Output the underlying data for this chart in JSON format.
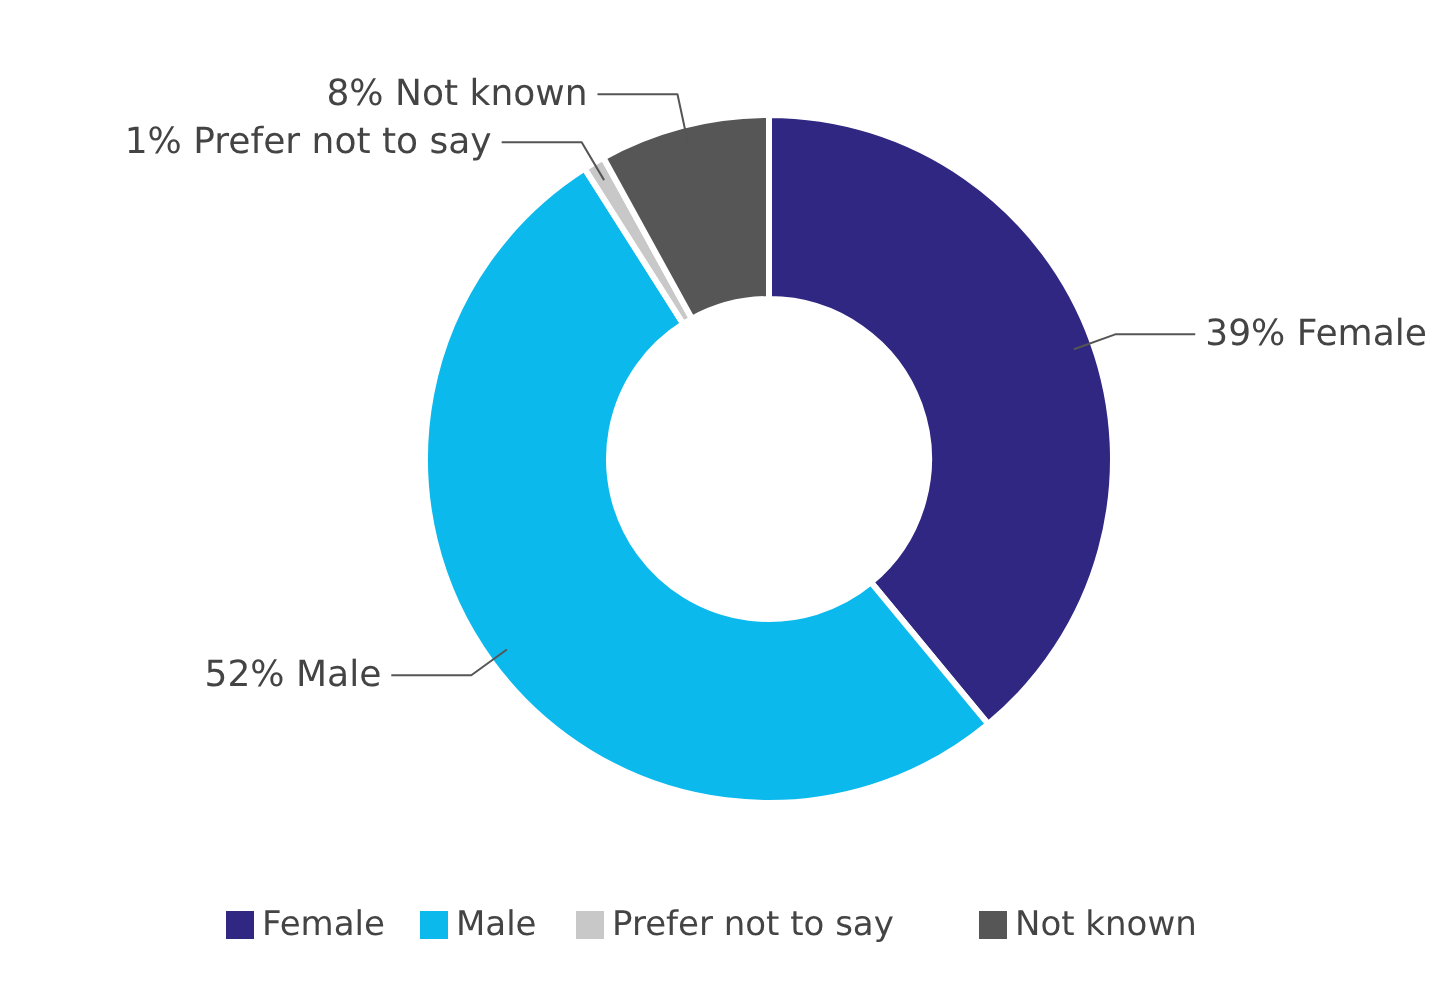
{
  "chart_data": {
    "type": "donut",
    "categories": [
      "Female",
      "Male",
      "Prefer not to say",
      "Not known"
    ],
    "values": [
      39,
      52,
      1,
      8
    ],
    "colors": [
      "#302783",
      "#0cb9ed",
      "#c8c8c8",
      "#565656"
    ],
    "value_labels": [
      "39% Female",
      "52% Male",
      "1% Prefer not to say",
      "8% Not known"
    ],
    "legend": "bottom"
  }
}
